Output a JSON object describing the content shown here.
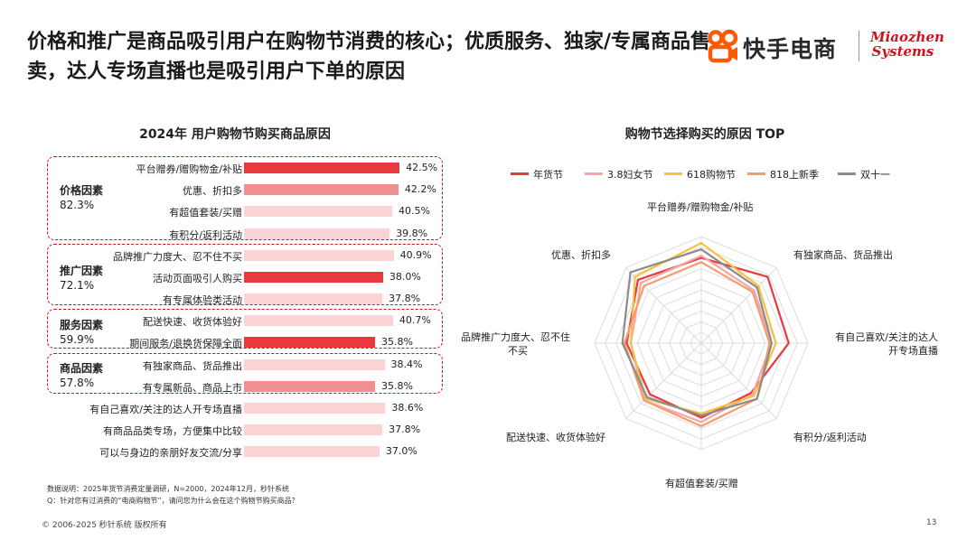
{
  "page": {
    "title": "价格和推广是商品吸引用户在购物节消费的核心；优质服务、独家/专属商品售卖，达人专场直播也是吸引用户下单的原因",
    "logo_kuaishou_text": "快手电商",
    "logo_miaozhen_line1": "Miaozhen",
    "logo_miaozhen_line2": "Systems",
    "footnote_1": "数据说明：2025年货节消费定量调研，N=2000，2024年12月，秒针系统",
    "footnote_2": "Q：针对您有过消费的“电商购物节”，请问您为什么会在这个购物节购买商品？",
    "copyright": "© 2006-2025 秒针系统 版权所有",
    "page_number": "13"
  },
  "colors": {
    "accent_red": "#d0121b",
    "bar_dark": "#e8393f",
    "bar_mid": "#f09090",
    "bar_light": "#fbd3d4",
    "series": [
      "#e8393f",
      "#f4a6a8",
      "#f5c342",
      "#f59b6e",
      "#8c8c8c"
    ]
  },
  "chart_data": [
    {
      "type": "bar",
      "orientation": "horizontal",
      "title": "2024年 用户购物节购买商品原因",
      "groups": [
        {
          "name": "价格因素",
          "total": "82.3%"
        },
        {
          "name": "推广因素",
          "total": "72.1%"
        },
        {
          "name": "服务因素",
          "total": "59.9%"
        },
        {
          "name": "商品因素",
          "total": "57.8%"
        }
      ],
      "items": [
        {
          "label": "平台赠券/赠购物金/补贴",
          "value": 42.5,
          "value_label": "42.5%",
          "shade": "dark"
        },
        {
          "label": "优惠、折扣多",
          "value": 42.2,
          "value_label": "42.2%",
          "shade": "mid"
        },
        {
          "label": "有超值套装/买赠",
          "value": 40.5,
          "value_label": "40.5%",
          "shade": "light"
        },
        {
          "label": "有积分/返利活动",
          "value": 39.8,
          "value_label": "39.8%",
          "shade": "light"
        },
        {
          "label": "品牌推广力度大、忍不住不买",
          "value": 40.9,
          "value_label": "40.9%",
          "shade": "light"
        },
        {
          "label": "活动页面吸引人购买",
          "value": 38.0,
          "value_label": "38.0%",
          "shade": "dark"
        },
        {
          "label": "有专属体验类活动",
          "value": 37.8,
          "value_label": "37.8%",
          "shade": "light"
        },
        {
          "label": "配送快速、收货体验好",
          "value": 40.7,
          "value_label": "40.7%",
          "shade": "light"
        },
        {
          "label": "期间服务/退换货保障全面",
          "value": 35.8,
          "value_label": "35.8%",
          "shade": "dark"
        },
        {
          "label": "有独家商品、货品推出",
          "value": 38.4,
          "value_label": "38.4%",
          "shade": "light"
        },
        {
          "label": "有专属新品、商品上市",
          "value": 35.8,
          "value_label": "35.8%",
          "shade": "mid"
        },
        {
          "label": "有自己喜欢/关注的达人开专场直播",
          "value": 38.6,
          "value_label": "38.6%",
          "shade": "light"
        },
        {
          "label": "有商品品类专场，方便集中比较",
          "value": 37.8,
          "value_label": "37.8%",
          "shade": "light"
        },
        {
          "label": "可以与身边的亲朋好友交流/分享",
          "value": 37.0,
          "value_label": "37.0%",
          "shade": "light"
        }
      ]
    },
    {
      "type": "radar",
      "title": "购物节选择购买的原因 TOP",
      "axes": [
        "平台赠券/赠购物金/补贴",
        "有独家商品、货品推出",
        "有自己喜欢/关注的达人开专场直播",
        "有积分/返利活动",
        "有超值套装/买赠",
        "配送快速、收货体验好",
        "品牌推广力度大、忍不住不买",
        "优惠、折扣多"
      ],
      "axis_labels_display": [
        "平台赠券/赠购物金/补贴",
        "有独家商品、货品推出",
        "有自己喜欢/关注的达人\n开专场直播",
        "有积分/返利活动",
        "有超值套装/买赠",
        "配送快速、收货体验好",
        "品牌推广力度大、忍不住\n不买",
        "优惠、折扣多"
      ],
      "grid_levels": 10,
      "range": [
        0,
        50
      ],
      "legend_position": "top",
      "series": [
        {
          "name": "年货节",
          "values": [
            40,
            44,
            41,
            33,
            35,
            34,
            35,
            42
          ]
        },
        {
          "name": "3.8妇女节",
          "values": [
            41,
            35,
            33,
            34,
            37,
            38,
            33,
            40
          ]
        },
        {
          "name": "618购物节",
          "values": [
            47,
            38,
            35,
            35,
            33,
            37,
            33,
            44
          ]
        },
        {
          "name": "818上新季",
          "values": [
            38,
            34,
            32,
            37,
            39,
            38,
            36,
            38
          ]
        },
        {
          "name": "双十一",
          "values": [
            44,
            37,
            33,
            37,
            34,
            36,
            37,
            47
          ]
        }
      ]
    }
  ]
}
